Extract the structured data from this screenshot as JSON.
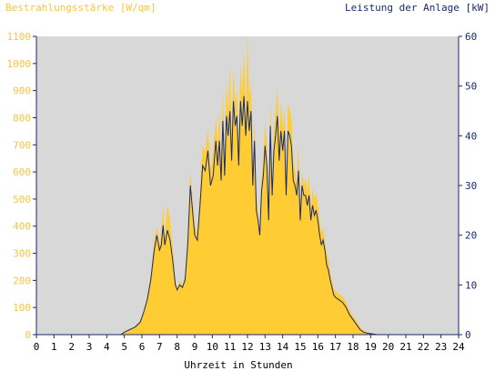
{
  "chart_data": {
    "type": "area",
    "title": "",
    "y_left_label": "Bestrahlungsstärke [W/qm]",
    "y_right_label": "Leistung der Anlage [kW]",
    "xlabel": "Uhrzeit in Stunden",
    "xlim": [
      0,
      24
    ],
    "ylim_left": [
      0,
      1100
    ],
    "ylim_right": [
      0,
      60
    ],
    "x_ticks": [
      "0",
      "1",
      "2",
      "3",
      "4",
      "5",
      "6",
      "7",
      "8",
      "9",
      "10",
      "11",
      "12",
      "13",
      "14",
      "15",
      "16",
      "17",
      "18",
      "19",
      "20",
      "21",
      "22",
      "23",
      "24"
    ],
    "y_left_ticks": [
      "0",
      "100",
      "200",
      "300",
      "400",
      "500",
      "600",
      "700",
      "800",
      "900",
      "1000",
      "1100"
    ],
    "y_right_ticks": [
      "0",
      "10",
      "20",
      "30",
      "40",
      "50",
      "60"
    ],
    "grid": false,
    "colors": {
      "plot_background": "#d8d8d8",
      "irradiance_fill": "#ffcc33",
      "power_line": "#1a2a6c",
      "left_axis_text": "#f5c542",
      "right_axis_text": "#1a2a6c",
      "axis": "#1a2a6c"
    },
    "series": [
      {
        "name": "Bestrahlungsstärke [W/qm]",
        "axis": "left",
        "style": "area",
        "x": [
          0,
          4.8,
          5.0,
          5.3,
          5.6,
          5.9,
          6.1,
          6.3,
          6.5,
          6.7,
          6.85,
          7.0,
          7.1,
          7.2,
          7.3,
          7.45,
          7.6,
          7.75,
          7.9,
          8.0,
          8.15,
          8.3,
          8.45,
          8.6,
          8.75,
          8.85,
          9.0,
          9.15,
          9.3,
          9.45,
          9.6,
          9.75,
          9.9,
          10.05,
          10.2,
          10.3,
          10.4,
          10.5,
          10.6,
          10.7,
          10.8,
          10.9,
          11.0,
          11.1,
          11.2,
          11.3,
          11.4,
          11.5,
          11.6,
          11.7,
          11.8,
          11.9,
          12.0,
          12.1,
          12.2,
          12.3,
          12.4,
          12.5,
          12.6,
          12.7,
          12.8,
          12.9,
          13.0,
          13.1,
          13.2,
          13.3,
          13.4,
          13.5,
          13.6,
          13.7,
          13.8,
          13.9,
          14.0,
          14.1,
          14.2,
          14.3,
          14.4,
          14.5,
          14.6,
          14.7,
          14.8,
          14.9,
          15.0,
          15.1,
          15.2,
          15.3,
          15.4,
          15.5,
          15.6,
          15.7,
          15.8,
          15.9,
          16.0,
          16.1,
          16.2,
          16.3,
          16.4,
          16.5,
          16.6,
          16.7,
          16.8,
          16.9,
          17.0,
          17.2,
          17.4,
          17.6,
          17.8,
          18.0,
          18.2,
          18.4,
          18.6,
          18.8,
          19.0,
          19.2,
          19.4,
          19.6,
          19.8,
          20.0,
          20.2,
          20.4,
          24
        ],
        "y": [
          0,
          0,
          10,
          20,
          30,
          50,
          90,
          140,
          220,
          350,
          400,
          330,
          380,
          470,
          360,
          480,
          420,
          320,
          200,
          170,
          200,
          180,
          220,
          370,
          600,
          520,
          400,
          380,
          530,
          700,
          670,
          760,
          600,
          680,
          800,
          700,
          820,
          620,
          900,
          650,
          930,
          820,
          1000,
          720,
          980,
          860,
          900,
          700,
          1000,
          880,
          1050,
          800,
          1100,
          870,
          930,
          600,
          800,
          520,
          450,
          380,
          580,
          650,
          780,
          700,
          460,
          860,
          560,
          760,
          820,
          910,
          720,
          860,
          760,
          840,
          550,
          850,
          830,
          800,
          630,
          600,
          560,
          700,
          460,
          600,
          550,
          580,
          530,
          590,
          460,
          540,
          500,
          520,
          480,
          420,
          370,
          400,
          340,
          300,
          280,
          230,
          200,
          170,
          160,
          150,
          140,
          120,
          90,
          70,
          50,
          30,
          15,
          8,
          5,
          3,
          0,
          0,
          0,
          0,
          0,
          0,
          0
        ]
      },
      {
        "name": "Leistung der Anlage [kW]",
        "axis": "right",
        "style": "line",
        "x": [
          0,
          4.8,
          5.0,
          5.3,
          5.6,
          5.9,
          6.1,
          6.3,
          6.5,
          6.7,
          6.85,
          7.0,
          7.1,
          7.2,
          7.3,
          7.45,
          7.6,
          7.75,
          7.9,
          8.0,
          8.15,
          8.3,
          8.45,
          8.6,
          8.75,
          8.85,
          9.0,
          9.15,
          9.3,
          9.45,
          9.6,
          9.75,
          9.9,
          10.05,
          10.2,
          10.3,
          10.4,
          10.5,
          10.6,
          10.7,
          10.8,
          10.9,
          11.0,
          11.1,
          11.2,
          11.3,
          11.4,
          11.5,
          11.6,
          11.7,
          11.8,
          11.9,
          12.0,
          12.1,
          12.2,
          12.3,
          12.4,
          12.5,
          12.6,
          12.7,
          12.8,
          12.9,
          13.0,
          13.1,
          13.2,
          13.3,
          13.4,
          13.5,
          13.6,
          13.7,
          13.8,
          13.9,
          14.0,
          14.1,
          14.2,
          14.3,
          14.4,
          14.5,
          14.6,
          14.7,
          14.8,
          14.9,
          15.0,
          15.1,
          15.2,
          15.3,
          15.4,
          15.5,
          15.6,
          15.7,
          15.8,
          15.9,
          16.0,
          16.1,
          16.2,
          16.3,
          16.4,
          16.5,
          16.6,
          16.7,
          16.8,
          16.9,
          17.0,
          17.2,
          17.4,
          17.6,
          17.8,
          18.0,
          18.2,
          18.4,
          18.6,
          18.8,
          19.0,
          19.2,
          19.4,
          19.6,
          19.8,
          20.0,
          20.2,
          20.4,
          24
        ],
        "y": [
          0,
          0,
          0.5,
          1,
          1.5,
          2.5,
          4.5,
          7,
          11,
          17,
          20,
          17,
          18,
          22,
          18,
          21,
          19,
          15,
          10,
          9,
          10,
          9.5,
          11,
          18,
          30,
          26,
          20,
          19,
          26,
          34,
          33,
          37,
          30,
          32,
          39,
          34,
          39,
          31,
          43,
          32,
          44,
          40,
          45,
          35,
          47,
          42,
          44,
          34,
          47,
          42,
          48,
          40,
          47,
          41,
          45,
          30,
          39,
          25,
          23,
          20,
          29,
          32,
          38,
          34,
          23,
          42,
          28,
          37,
          40,
          44,
          35,
          41,
          37,
          41,
          28,
          41,
          40,
          38,
          31,
          30,
          28,
          33,
          23,
          30,
          28,
          28,
          26,
          28,
          23,
          26,
          24,
          25,
          23,
          20,
          18,
          19,
          17,
          14,
          13,
          11,
          9.5,
          8,
          7.5,
          7,
          6.5,
          5.5,
          4,
          3,
          2,
          1,
          0.5,
          0.3,
          0.2,
          0.1,
          0,
          0,
          0,
          0,
          0,
          0,
          0
        ]
      }
    ]
  }
}
